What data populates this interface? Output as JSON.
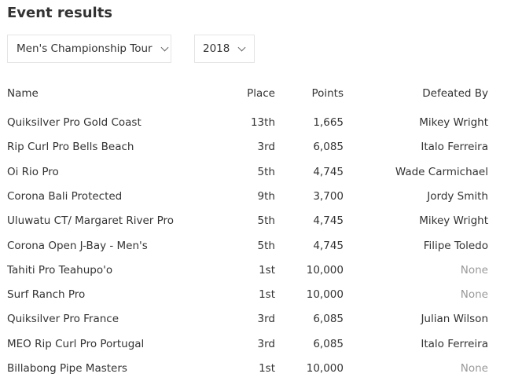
{
  "title": "Event results",
  "filters": {
    "tour": "Men's Championship Tour",
    "year": "2018"
  },
  "columns": [
    "Name",
    "Place",
    "Points",
    "Defeated By"
  ],
  "rows": [
    [
      "Quiksilver Pro Gold Coast",
      "13th",
      "1,665",
      "Mikey Wright"
    ],
    [
      "Rip Curl Pro Bells Beach",
      "3rd",
      "6,085",
      "Italo Ferreira"
    ],
    [
      "Oi Rio Pro",
      "5th",
      "4,745",
      "Wade Carmichael"
    ],
    [
      "Corona Bali Protected",
      "9th",
      "3,700",
      "Jordy Smith"
    ],
    [
      "Uluwatu CT/ Margaret River Pro",
      "5th",
      "4,745",
      "Mikey Wright"
    ],
    [
      "Corona Open J-Bay - Men's",
      "5th",
      "4,745",
      "Filipe Toledo"
    ],
    [
      "Tahiti Pro Teahupo'o",
      "1st",
      "10,000",
      "None"
    ],
    [
      "Surf Ranch Pro",
      "1st",
      "10,000",
      "None"
    ],
    [
      "Quiksilver Pro France",
      "3rd",
      "6,085",
      "Julian Wilson"
    ],
    [
      "MEO Rip Curl Pro Portugal",
      "3rd",
      "6,085",
      "Italo Ferreira"
    ],
    [
      "Billabong Pipe Masters",
      "1st",
      "10,000",
      "None"
    ]
  ]
}
